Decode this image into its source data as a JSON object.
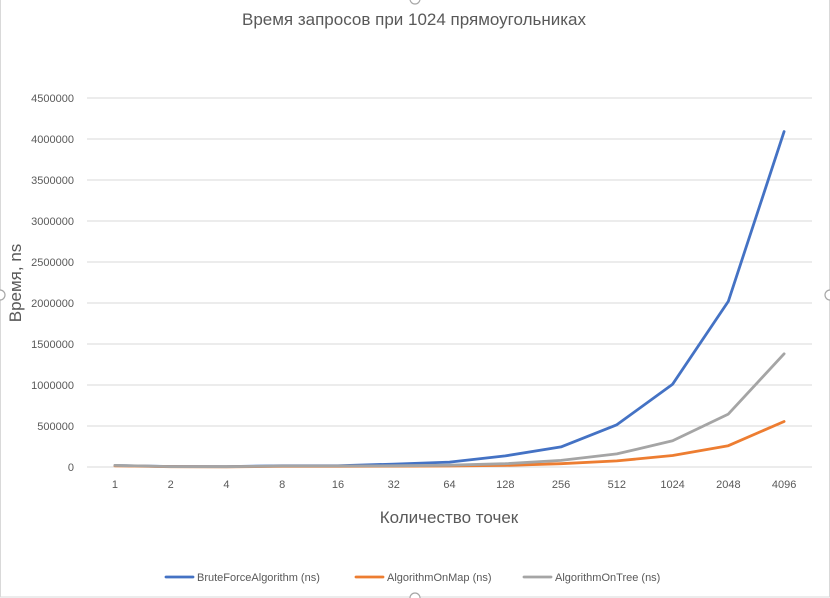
{
  "chart_data": {
    "type": "line",
    "title": "Время запросов при 1024 прямоугольниках",
    "xlabel": "Количество точек",
    "ylabel": "Время, ns",
    "categories": [
      "1",
      "2",
      "4",
      "8",
      "16",
      "32",
      "64",
      "128",
      "256",
      "512",
      "1024",
      "2048",
      "4096"
    ],
    "ylim": [
      0,
      4500000
    ],
    "yticks": [
      0,
      500000,
      1000000,
      1500000,
      2000000,
      2500000,
      3000000,
      3500000,
      4000000,
      4500000
    ],
    "grid": true,
    "legend": "bottom",
    "series": [
      {
        "name": "BruteForceAlgorithm (ns)",
        "color": "#4472c4",
        "values": [
          18000,
          6000,
          5000,
          15000,
          15000,
          35000,
          60000,
          135000,
          245000,
          515000,
          1010000,
          2020000,
          4090000
        ]
      },
      {
        "name": "AlgorithmOnMap (ns)",
        "color": "#ed7d31",
        "values": [
          15000,
          4000,
          3000,
          8000,
          8000,
          10000,
          12000,
          20000,
          40000,
          75000,
          140000,
          260000,
          555000
        ]
      },
      {
        "name": "AlgorithmOnTree (ns)",
        "color": "#a5a5a5",
        "values": [
          20000,
          5000,
          4000,
          12000,
          12000,
          15000,
          22000,
          40000,
          80000,
          160000,
          320000,
          645000,
          1380000
        ]
      }
    ]
  }
}
